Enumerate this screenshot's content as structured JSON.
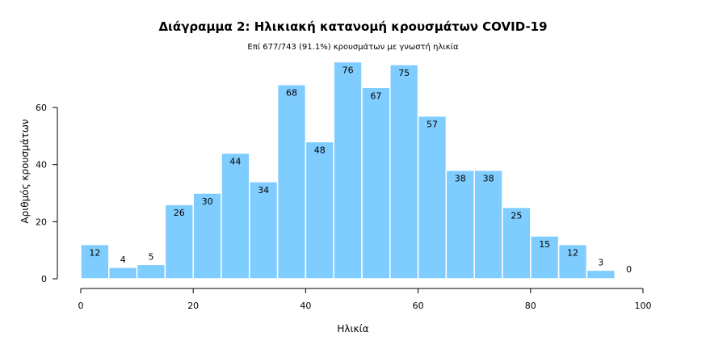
{
  "chart_data": {
    "type": "bar",
    "title": "Διάγραμμα 2: Ηλικιακή κατανομή κρουσμάτων COVID-19",
    "subtitle": "Επί 677/743 (91.1%) κρουσμάτων με γνωστή ηλικία",
    "xlabel": "Ηλικία",
    "ylabel": "Αριθμός κρουσμάτων",
    "bin_width": 5,
    "x_start": 0,
    "bins": [
      {
        "start": 0,
        "value": 12
      },
      {
        "start": 5,
        "value": 4
      },
      {
        "start": 10,
        "value": 5
      },
      {
        "start": 15,
        "value": 26
      },
      {
        "start": 20,
        "value": 30
      },
      {
        "start": 25,
        "value": 44
      },
      {
        "start": 30,
        "value": 34
      },
      {
        "start": 35,
        "value": 68
      },
      {
        "start": 40,
        "value": 48
      },
      {
        "start": 45,
        "value": 76
      },
      {
        "start": 50,
        "value": 67
      },
      {
        "start": 55,
        "value": 75
      },
      {
        "start": 60,
        "value": 57
      },
      {
        "start": 65,
        "value": 38
      },
      {
        "start": 70,
        "value": 38
      },
      {
        "start": 75,
        "value": 25
      },
      {
        "start": 80,
        "value": 15
      },
      {
        "start": 85,
        "value": 12
      },
      {
        "start": 90,
        "value": 3
      },
      {
        "start": 95,
        "value": 0
      }
    ],
    "xlim": [
      0,
      100
    ],
    "ylim": [
      0,
      80
    ],
    "x_ticks": [
      "0",
      "20",
      "40",
      "60",
      "80",
      "100"
    ],
    "y_ticks": [
      "0",
      "20",
      "40",
      "60"
    ],
    "grid": false,
    "bar_color": "#7FCCFF",
    "bar_edge_color": "#ffffff"
  }
}
